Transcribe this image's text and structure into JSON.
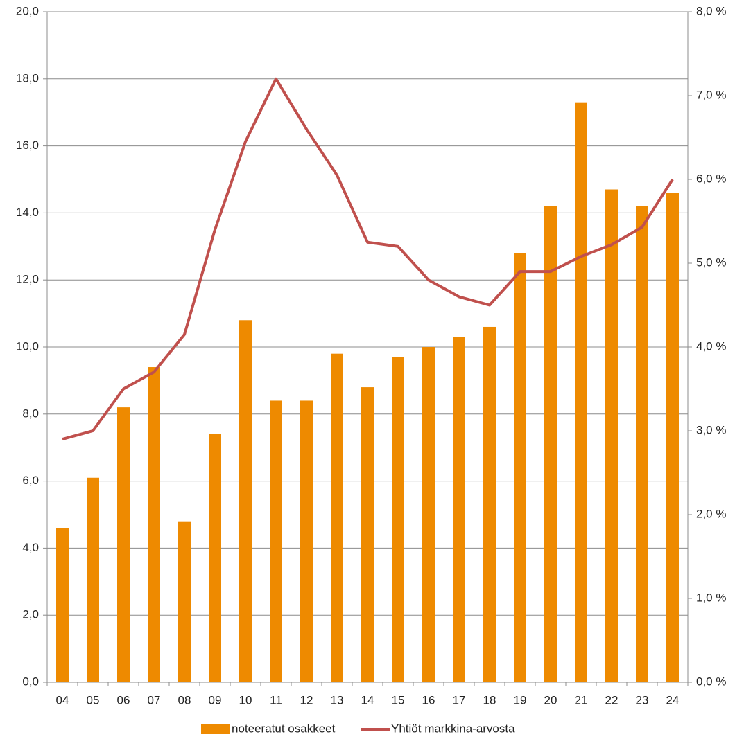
{
  "chart_data": {
    "type": "bar",
    "categories": [
      "04",
      "05",
      "06",
      "07",
      "08",
      "09",
      "10",
      "11",
      "12",
      "13",
      "14",
      "15",
      "16",
      "17",
      "18",
      "19",
      "20",
      "21",
      "22",
      "23",
      "24"
    ],
    "series": [
      {
        "name": "noteeratut osakkeet",
        "color": "#ee8a00",
        "values": [
          4.6,
          6.1,
          8.2,
          9.4,
          4.8,
          7.4,
          10.8,
          8.4,
          8.4,
          9.8,
          8.8,
          9.7,
          10.0,
          10.3,
          10.6,
          12.8,
          14.2,
          17.3,
          14.7,
          14.2,
          14.6
        ]
      },
      {
        "name": "Yhtiöt markkina-arvosta",
        "type": "line",
        "axis": "y2",
        "color": "#c0504d",
        "values": [
          2.9,
          3.0,
          3.5,
          3.7,
          4.15,
          5.4,
          6.45,
          7.2,
          6.6,
          6.05,
          5.25,
          5.2,
          4.8,
          4.6,
          4.5,
          4.9,
          4.9,
          5.08,
          5.22,
          5.43,
          6.0
        ]
      }
    ],
    "ylim": [
      0,
      20
    ],
    "yticks": [
      {
        "value": 0,
        "label": "0,0"
      },
      {
        "value": 2,
        "label": "2,0"
      },
      {
        "value": 4,
        "label": "4,0"
      },
      {
        "value": 6,
        "label": "6,0"
      },
      {
        "value": 8,
        "label": "8,0"
      },
      {
        "value": 10,
        "label": "10,0"
      },
      {
        "value": 12,
        "label": "12,0"
      },
      {
        "value": 14,
        "label": "14,0"
      },
      {
        "value": 16,
        "label": "16,0"
      },
      {
        "value": 18,
        "label": "18,0"
      },
      {
        "value": 20,
        "label": "20,0"
      }
    ],
    "y2lim": [
      0,
      8
    ],
    "y2ticks": [
      {
        "value": 0,
        "label": "0,0 %"
      },
      {
        "value": 1,
        "label": "1,0 %"
      },
      {
        "value": 2,
        "label": "2,0 %"
      },
      {
        "value": 3,
        "label": "3,0 %"
      },
      {
        "value": 4,
        "label": "4,0 %"
      },
      {
        "value": 5,
        "label": "5,0 %"
      },
      {
        "value": 6,
        "label": "6,0 %"
      },
      {
        "value": 7,
        "label": "7,0 %"
      },
      {
        "value": 8,
        "label": "8,0 %"
      }
    ],
    "grid": true,
    "legend": "bottom"
  }
}
